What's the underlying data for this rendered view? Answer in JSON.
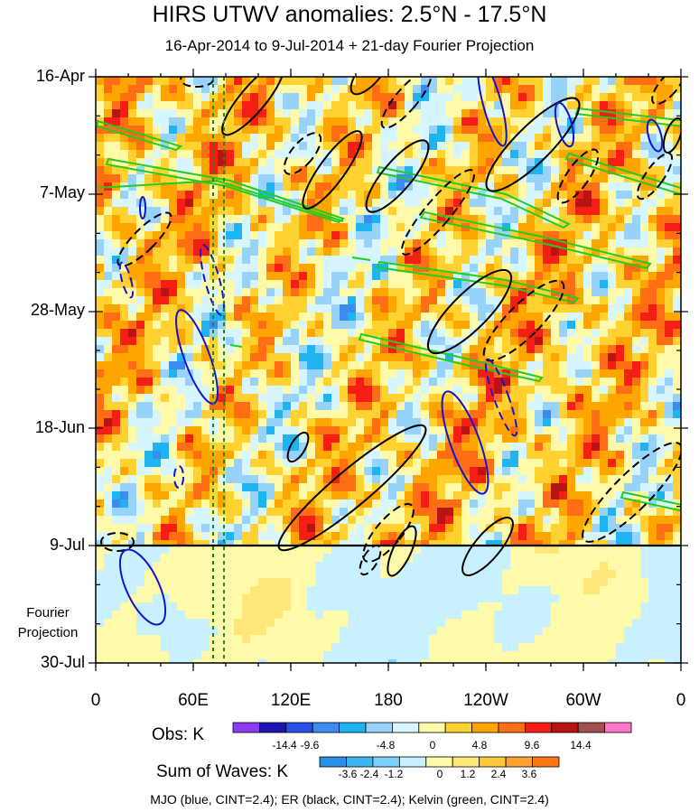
{
  "chart_data": {
    "type": "heatmap",
    "title": "HIRS UTWV anomalies: 2.5°N - 17.5°N",
    "subtitle": "16-Apr-2014 to 9-Jul-2014 + 21-day Fourier Projection",
    "y_tick_labels": [
      "16-Apr",
      "7-May",
      "28-May",
      "18-Jun",
      "9-Jul",
      "30-Jul"
    ],
    "projection_label": "Fourier\nProjection",
    "x_tick_labels": [
      "0",
      "60E",
      "120E",
      "180",
      "120W",
      "60W",
      "0"
    ],
    "x_range_deg_east": [
      0,
      360
    ],
    "time_range": [
      "16-Apr-2014",
      "30-Jul-2014"
    ],
    "observation_end": "9-Jul-2014",
    "obs_colorbar": {
      "title": "Obs: K",
      "tick_labels": [
        "-14.4",
        "-9.6",
        "-4.8",
        "0",
        "4.8",
        "9.6",
        "14.4"
      ],
      "colors": [
        "#8c3cf0",
        "#1e14b4",
        "#2850e6",
        "#3c8cf0",
        "#1eb4f0",
        "#96d2fa",
        "#d7f5ff",
        "#fffaaa",
        "#ffd232",
        "#ffa500",
        "#ff6e14",
        "#f51e14",
        "#b91414",
        "#a05050",
        "#ff78c8"
      ]
    },
    "waves_colorbar": {
      "title": "Sum of Waves: K",
      "tick_labels": [
        "-3.6",
        "-2.4",
        "-1.2",
        "0",
        "1.2",
        "2.4",
        "3.6"
      ],
      "colors": [
        "#2890e6",
        "#3cb4f0",
        "#78d2fa",
        "#c8f0ff",
        "#fffaaa",
        "#ffe678",
        "#ffc83c",
        "#ffa032",
        "#fa7814"
      ]
    },
    "contours": {
      "mjo": {
        "color": "#0000cc",
        "cint": 2.4
      },
      "er": {
        "color": "#000000",
        "cint": 2.4
      },
      "kelvin": {
        "color": "#22cc22",
        "cint": 2.4
      }
    },
    "reference_longitudes_deg_east": [
      74,
      80
    ]
  },
  "footer": "MJO (blue, CINT=2.4); ER (black, CINT=2.4); Kelvin (green, CINT=2.4)"
}
